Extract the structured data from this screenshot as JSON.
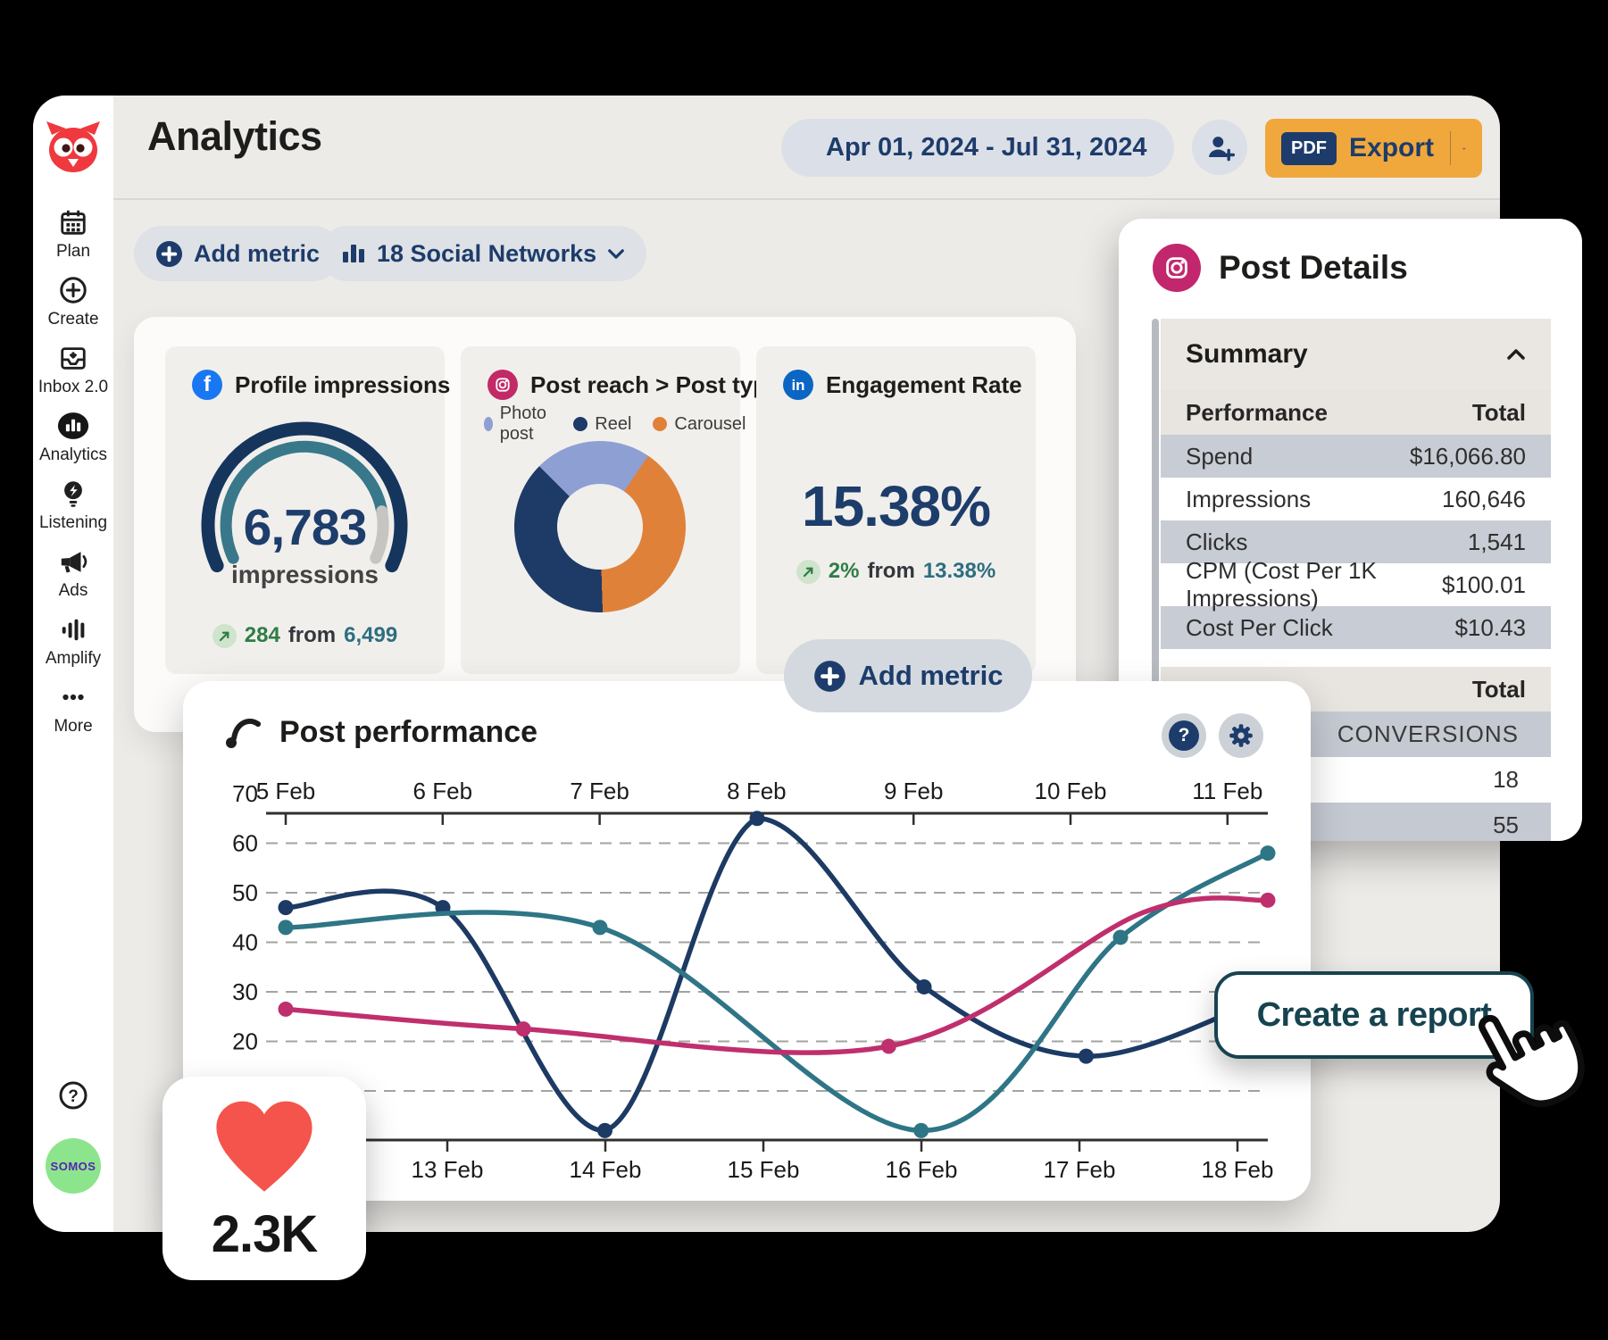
{
  "app": {
    "title": "Analytics"
  },
  "header": {
    "date_range": "Apr 01, 2024 - Jul 31, 2024",
    "pdf_badge": "PDF",
    "export_label": "Export"
  },
  "toolbar": {
    "add_metric": "Add metric",
    "networks": "18 Social Networks"
  },
  "sidebar": {
    "items": [
      {
        "label": "Plan",
        "icon": "calendar"
      },
      {
        "label": "Create",
        "icon": "create"
      },
      {
        "label": "Inbox 2.0",
        "icon": "inbox"
      },
      {
        "label": "Analytics",
        "icon": "analytics",
        "active": true
      },
      {
        "label": "Listening",
        "icon": "listening"
      },
      {
        "label": "Ads",
        "icon": "ads"
      },
      {
        "label": "Amplify",
        "icon": "amplify"
      },
      {
        "label": "More",
        "icon": "more"
      }
    ],
    "help_glyph": "?",
    "badge": "SOMOS"
  },
  "cards": {
    "profile": {
      "network": "facebook",
      "title": "Profile impressions",
      "value": "6,783",
      "unit": "impressions",
      "delta": "284",
      "from_label": "from",
      "previous": "6,499"
    },
    "reach": {
      "network": "instagram",
      "title": "Post reach > Post type",
      "legend": [
        {
          "label": "Photo post",
          "color": "#8e9fd4"
        },
        {
          "label": "Reel",
          "color": "#1e3a66"
        },
        {
          "label": "Carousel",
          "color": "#e0813a"
        }
      ],
      "slices": [
        {
          "label": "Photo post",
          "value": 22,
          "color": "#8e9fd4"
        },
        {
          "label": "Carousel",
          "value": 40,
          "color": "#e0813a"
        },
        {
          "label": "Reel",
          "value": 38,
          "color": "#1e3a66"
        }
      ]
    },
    "engagement": {
      "network": "linkedin",
      "title": "Engagement Rate",
      "value": "15.38%",
      "delta": "2%",
      "from_label": "from",
      "previous": "13.38%"
    },
    "add_metric_label": "Add metric"
  },
  "post_details": {
    "title": "Post Details",
    "section": "Summary",
    "columns": {
      "metric": "Performance",
      "total": "Total"
    },
    "rows": [
      [
        "Spend",
        "$16,066.80"
      ],
      [
        "Impressions",
        "160,646"
      ],
      [
        "Clicks",
        "1,541"
      ],
      [
        "CPM (Cost Per 1K Impressions)",
        "$100.01"
      ],
      [
        "Cost Per Click",
        "$10.43"
      ]
    ],
    "totals": {
      "header": "Total",
      "rows": [
        "CONVERSIONS",
        "18",
        "55"
      ]
    }
  },
  "post_performance": {
    "title": "Post performance",
    "help_glyph": "?"
  },
  "chart_data": {
    "type": "line",
    "title": "Post performance",
    "x_axis_top": [
      "5 Feb",
      "6 Feb",
      "7 Feb",
      "8 Feb",
      "9 Feb",
      "10 Feb",
      "11 Feb"
    ],
    "x_axis_bottom": [
      "13 Feb",
      "14 Feb",
      "15 Feb",
      "16 Feb",
      "17 Feb",
      "18 Feb"
    ],
    "y_ticks": [
      70,
      60,
      50,
      40,
      30,
      20
    ],
    "gridline_values": [
      60,
      50,
      40,
      30,
      20,
      10
    ],
    "ylim": [
      0,
      70
    ],
    "grid": "dashed-horizontal",
    "x_encoding": "fraction of plot width (dual x axes: 5-11 Feb on top, 13-18 Feb on bottom)",
    "series": [
      {
        "name": "series-navy",
        "color": "#1c3a63",
        "points": [
          [
            0,
            47
          ],
          [
            0.16,
            47
          ],
          [
            0.325,
            2
          ],
          [
            0.48,
            65
          ],
          [
            0.65,
            31
          ],
          [
            0.815,
            17
          ],
          [
            1,
            29
          ]
        ],
        "dots": [
          0,
          1,
          2,
          3,
          4,
          5
        ]
      },
      {
        "name": "series-teal",
        "color": "#2e7586",
        "points": [
          [
            0,
            43
          ],
          [
            0.32,
            43
          ],
          [
            0.647,
            2
          ],
          [
            0.85,
            41
          ],
          [
            1,
            58
          ]
        ],
        "dots": [
          0,
          1,
          2,
          3,
          4
        ]
      },
      {
        "name": "series-pink",
        "color": "#c02f6d",
        "points": [
          [
            0,
            26.5
          ],
          [
            0.242,
            22.5
          ],
          [
            0.614,
            19
          ],
          [
            0.873,
            46
          ],
          [
            1,
            48.5
          ]
        ],
        "dots": [
          0,
          1,
          2,
          4
        ]
      }
    ]
  },
  "cta": {
    "label": "Create a report"
  },
  "likes": {
    "value": "2.3K"
  },
  "palette": {
    "accent_orange": "#f0a83c",
    "navy": "#1d3c6b",
    "teal": "#2e7586",
    "pink": "#c02f6d",
    "brand_red": "#f0383f",
    "positive_green": "#2e7d45"
  }
}
